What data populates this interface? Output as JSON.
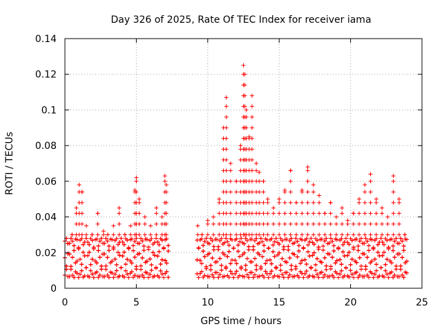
{
  "chart_data": {
    "type": "scatter",
    "title": "Day 326 of 2025, Rate Of TEC Index for receiver iama",
    "xlabel": "GPS time / hours",
    "ylabel": "ROTI / TECUs",
    "xlim": [
      0,
      25
    ],
    "ylim": [
      0,
      0.14
    ],
    "xticks": [
      0,
      5,
      10,
      15,
      20,
      25
    ],
    "yticks": [
      0,
      0.02,
      0.04,
      0.06,
      0.08,
      0.1,
      0.12,
      0.14
    ],
    "xtick_labels": [
      "0",
      "5",
      "10",
      "15",
      "20",
      "25"
    ],
    "ytick_labels": [
      "0",
      "0.02",
      "0.04",
      "0.06",
      "0.08",
      "0.1",
      "0.12",
      "0.14"
    ],
    "grid": true,
    "legend": "none",
    "marker": "plus",
    "color": "#ff0000",
    "data_gap_hours": [
      7.3,
      9.2
    ],
    "series": [
      {
        "x": [
          0.2,
          0.5,
          0.8,
          1.0,
          1.2,
          1.5,
          1.9,
          2.3,
          2.7,
          3.0,
          3.4,
          3.8,
          4.2,
          4.6,
          4.9,
          5.0,
          5.2,
          5.6,
          6.0,
          6.4,
          6.8,
          7.0,
          7.1,
          9.3,
          9.6,
          10.0,
          10.4,
          10.8,
          11.1,
          11.3,
          11.6,
          12.0,
          12.3,
          12.5,
          12.6,
          12.7,
          12.9,
          13.1,
          13.4,
          13.6,
          13.9,
          14.2,
          14.6,
          15.0,
          15.4,
          15.8,
          16.2,
          16.6,
          17.0,
          17.4,
          17.8,
          18.2,
          18.6,
          19.0,
          19.4,
          19.8,
          20.2,
          20.6,
          21.0,
          21.4,
          21.8,
          22.2,
          22.6,
          23.0,
          23.4,
          23.8
        ],
        "y": [
          0.025,
          0.03,
          0.045,
          0.058,
          0.054,
          0.035,
          0.03,
          0.042,
          0.032,
          0.03,
          0.035,
          0.045,
          0.03,
          0.035,
          0.055,
          0.062,
          0.05,
          0.04,
          0.035,
          0.045,
          0.04,
          0.063,
          0.058,
          0.035,
          0.03,
          0.038,
          0.04,
          0.05,
          0.09,
          0.107,
          0.07,
          0.06,
          0.08,
          0.125,
          0.12,
          0.1,
          0.085,
          0.108,
          0.07,
          0.065,
          0.06,
          0.05,
          0.045,
          0.05,
          0.055,
          0.066,
          0.048,
          0.055,
          0.068,
          0.058,
          0.052,
          0.042,
          0.048,
          0.04,
          0.045,
          0.038,
          0.042,
          0.05,
          0.058,
          0.064,
          0.05,
          0.045,
          0.04,
          0.063,
          0.05,
          0.03
        ]
      }
    ]
  }
}
